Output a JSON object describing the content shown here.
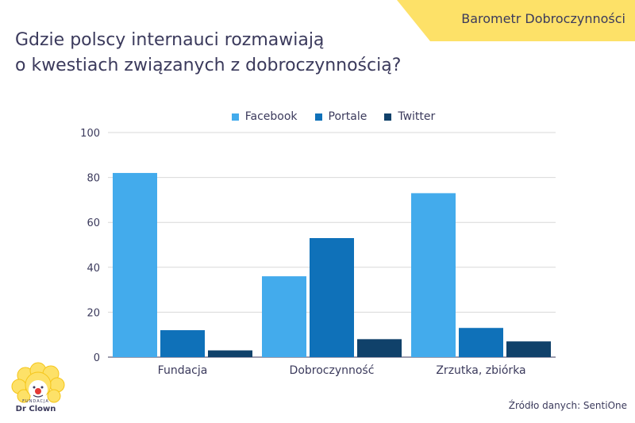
{
  "banner": {
    "text": "Barometr Dobroczynności"
  },
  "title": {
    "line1": "Gdzie polscy internauci rozmawiają",
    "line2": "o kwestiach związanych z dobroczynnością?"
  },
  "colors": {
    "banner": "#fde168",
    "text": "#3b3a5c",
    "facebook": "#43abec",
    "portale": "#0f71b9",
    "twitter": "#10416a",
    "grid": "#d9d9d9"
  },
  "chart_data": {
    "type": "bar",
    "categories": [
      "Fundacja",
      "Dobroczynność",
      "Zrzutka, zbiórka"
    ],
    "series": [
      {
        "name": "Facebook",
        "values": [
          82,
          36,
          73
        ],
        "color": "#43abec"
      },
      {
        "name": "Portale",
        "values": [
          12,
          53,
          13
        ],
        "color": "#0f71b9"
      },
      {
        "name": "Twitter",
        "values": [
          3,
          8,
          7
        ],
        "color": "#10416a"
      }
    ],
    "ylim": [
      0,
      100
    ],
    "yticks": [
      0,
      20,
      40,
      60,
      80,
      100
    ],
    "grid": true,
    "legend_position": "top-center"
  },
  "logo": {
    "small_text": "FUNDACJA",
    "name": "Dr Clown"
  },
  "source": "Źródło danych: SentiOne"
}
